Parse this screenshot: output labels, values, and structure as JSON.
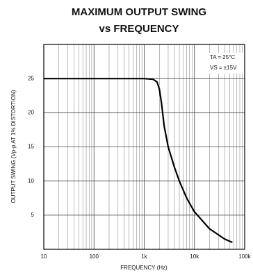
{
  "chart_data": {
    "type": "line",
    "title": "MAXIMUM OUTPUT SWING",
    "subtitle": "vs FREQUENCY",
    "x_label": "FREQUENCY (Hz)",
    "y_label": "OUTPUT SWING (Vp-p AT 1% DISTORTION)",
    "annotations": [
      "TA = 25°C",
      "VS = ±15V"
    ],
    "x": [
      10,
      100,
      1000,
      1500,
      1800,
      2000,
      2200,
      2500,
      3000,
      4000,
      5000,
      7000,
      10000,
      20000,
      40000,
      57000
    ],
    "values": [
      25,
      25,
      25,
      24.9,
      24.5,
      23.5,
      21.5,
      18,
      15,
      12,
      10,
      7.5,
      5.5,
      3,
      1.5,
      1
    ],
    "color": "#000000",
    "xlog": true,
    "xlim": [
      10,
      100000
    ],
    "xticks": [
      10,
      100,
      {
        "value": 1000,
        "label": "1k"
      },
      {
        "value": 10000,
        "label": "10k"
      },
      {
        "value": 100000,
        "label": "100k"
      }
    ],
    "ylim": [
      0,
      30
    ],
    "yticks": [
      5,
      10,
      15,
      20,
      25
    ],
    "grid": true
  }
}
